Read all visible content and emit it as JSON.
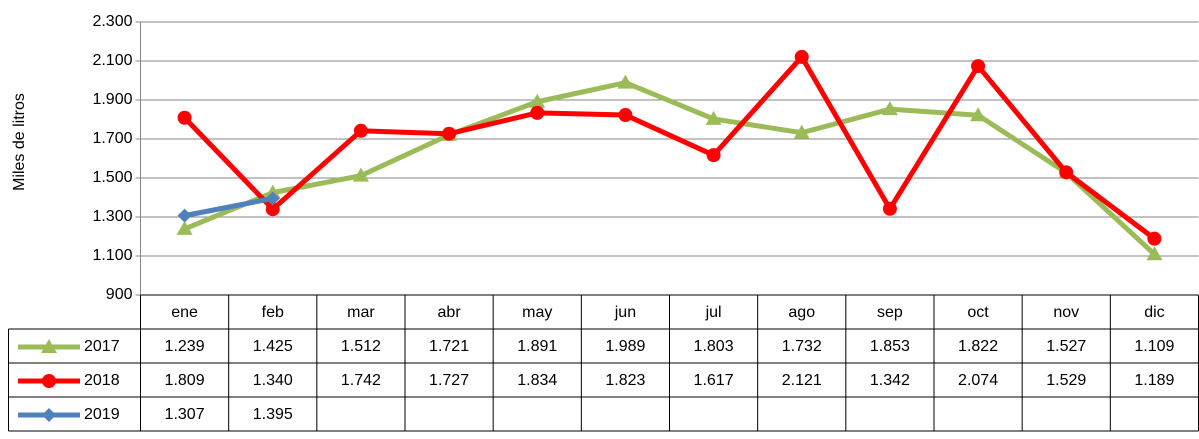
{
  "chart_data": {
    "type": "line",
    "y_axis_label": "Miles de litros",
    "categories": [
      "ene",
      "feb",
      "mar",
      "abr",
      "may",
      "jun",
      "jul",
      "ago",
      "sep",
      "oct",
      "nov",
      "dic"
    ],
    "series": [
      {
        "name": "2017",
        "color": "#9bbb59",
        "marker": "triangle",
        "values": [
          1239,
          1425,
          1512,
          1721,
          1891,
          1989,
          1803,
          1732,
          1853,
          1822,
          1527,
          1109
        ],
        "value_labels": [
          "1.239",
          "1.425",
          "1.512",
          "1.721",
          "1.891",
          "1.989",
          "1.803",
          "1.732",
          "1.853",
          "1.822",
          "1.527",
          "1.109"
        ]
      },
      {
        "name": "2018",
        "color": "#ff0000",
        "marker": "circle",
        "values": [
          1809,
          1340,
          1742,
          1727,
          1834,
          1823,
          1617,
          2121,
          1342,
          2074,
          1529,
          1189
        ],
        "value_labels": [
          "1.809",
          "1.340",
          "1.742",
          "1.727",
          "1.834",
          "1.823",
          "1.617",
          "2.121",
          "1.342",
          "2.074",
          "1.529",
          "1.189"
        ]
      },
      {
        "name": "2019",
        "color": "#4f81bd",
        "marker": "diamond",
        "values": [
          1307,
          1395,
          null,
          null,
          null,
          null,
          null,
          null,
          null,
          null,
          null,
          null
        ],
        "value_labels": [
          "1.307",
          "1.395",
          null,
          null,
          null,
          null,
          null,
          null,
          null,
          null,
          null,
          null
        ]
      }
    ],
    "ylim": [
      900,
      2300
    ],
    "yticks": [
      {
        "value": 900,
        "label": "900"
      },
      {
        "value": 1100,
        "label": "1.100"
      },
      {
        "value": 1300,
        "label": "1.300"
      },
      {
        "value": 1500,
        "label": "1.500"
      },
      {
        "value": 1700,
        "label": "1.700"
      },
      {
        "value": 1900,
        "label": "1.900"
      },
      {
        "value": 2100,
        "label": "2.100"
      },
      {
        "value": 2300,
        "label": "2.300"
      }
    ],
    "grid": true
  }
}
